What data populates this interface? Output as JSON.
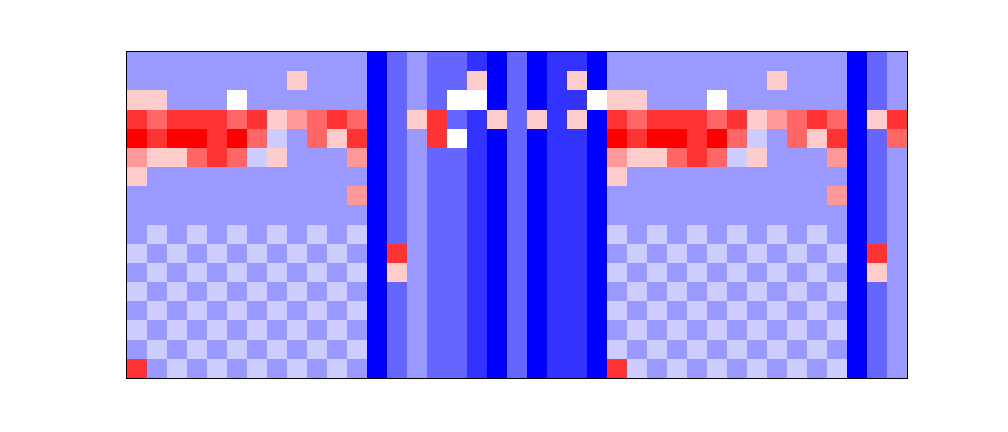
{
  "chart_data": {
    "type": "heatmap",
    "tick_labels": false,
    "grid": false,
    "xlim": [
      -0.5,
      38.5
    ],
    "ylim": [
      16.5,
      -0.5
    ],
    "zlim": [
      0,
      10
    ],
    "z": [
      [
        3,
        3,
        3,
        3,
        3,
        3,
        3,
        3,
        3,
        3,
        3,
        3,
        0,
        2,
        3,
        2,
        2,
        1,
        0,
        2,
        0,
        1,
        1,
        0,
        3,
        3,
        3,
        3,
        3,
        3,
        3,
        3,
        3,
        3,
        3,
        3,
        0,
        2,
        3
      ],
      [
        3,
        3,
        3,
        3,
        3,
        3,
        3,
        3,
        6,
        3,
        3,
        3,
        0,
        2,
        3,
        2,
        2,
        6,
        0,
        2,
        0,
        1,
        6,
        0,
        3,
        3,
        3,
        3,
        3,
        3,
        3,
        3,
        6,
        3,
        3,
        3,
        0,
        2,
        3
      ],
      [
        6,
        6,
        3,
        3,
        3,
        5,
        3,
        3,
        3,
        3,
        3,
        3,
        0,
        2,
        3,
        2,
        5,
        5,
        0,
        2,
        0,
        1,
        1,
        5,
        6,
        6,
        3,
        3,
        3,
        5,
        3,
        3,
        3,
        3,
        3,
        3,
        0,
        2,
        3
      ],
      [
        9,
        8,
        9,
        9,
        9,
        8,
        9,
        6,
        7,
        8,
        9,
        8,
        0,
        2,
        6,
        9,
        2,
        1,
        6,
        2,
        6,
        1,
        6,
        0,
        9,
        8,
        9,
        9,
        9,
        8,
        9,
        6,
        7,
        8,
        9,
        8,
        0,
        6,
        9
      ],
      [
        10,
        9,
        10,
        10,
        9,
        10,
        8,
        4,
        3,
        8,
        6,
        9,
        0,
        2,
        3,
        9,
        5,
        1,
        0,
        2,
        0,
        1,
        1,
        0,
        10,
        9,
        10,
        10,
        9,
        10,
        8,
        4,
        3,
        8,
        6,
        9,
        0,
        2,
        8
      ],
      [
        7,
        6,
        6,
        8,
        9,
        8,
        4,
        6,
        3,
        3,
        3,
        7,
        0,
        2,
        3,
        2,
        2,
        1,
        0,
        2,
        0,
        1,
        1,
        0,
        7,
        6,
        6,
        8,
        9,
        8,
        4,
        6,
        3,
        3,
        3,
        7,
        0,
        2,
        3
      ],
      [
        6,
        3,
        3,
        3,
        3,
        3,
        3,
        3,
        3,
        3,
        3,
        3,
        0,
        2,
        3,
        2,
        2,
        1,
        0,
        2,
        0,
        1,
        1,
        0,
        6,
        3,
        3,
        3,
        3,
        3,
        3,
        3,
        3,
        3,
        3,
        3,
        0,
        2,
        3
      ],
      [
        3,
        3,
        3,
        3,
        3,
        3,
        3,
        3,
        3,
        3,
        3,
        7,
        0,
        2,
        3,
        2,
        2,
        1,
        0,
        2,
        0,
        1,
        1,
        0,
        3,
        3,
        3,
        3,
        3,
        3,
        3,
        3,
        3,
        3,
        3,
        7,
        0,
        2,
        3
      ],
      [
        3,
        3,
        3,
        3,
        3,
        3,
        3,
        3,
        3,
        3,
        3,
        3,
        0,
        2,
        3,
        2,
        2,
        1,
        0,
        2,
        0,
        1,
        1,
        0,
        3,
        3,
        3,
        3,
        3,
        3,
        3,
        3,
        3,
        3,
        3,
        3,
        0,
        2,
        3
      ],
      [
        3,
        4,
        3,
        4,
        3,
        4,
        3,
        4,
        3,
        4,
        3,
        4,
        0,
        2,
        3,
        2,
        2,
        1,
        0,
        2,
        0,
        1,
        1,
        0,
        4,
        3,
        4,
        3,
        4,
        3,
        4,
        3,
        4,
        3,
        4,
        3,
        0,
        2,
        3
      ],
      [
        4,
        3,
        4,
        3,
        4,
        3,
        4,
        3,
        4,
        3,
        4,
        3,
        0,
        9,
        3,
        2,
        2,
        1,
        0,
        2,
        0,
        1,
        1,
        0,
        3,
        4,
        3,
        4,
        3,
        4,
        3,
        4,
        3,
        4,
        3,
        4,
        0,
        9,
        3
      ],
      [
        3,
        4,
        3,
        4,
        3,
        4,
        3,
        4,
        3,
        4,
        3,
        4,
        0,
        6,
        3,
        2,
        2,
        1,
        0,
        2,
        0,
        1,
        1,
        0,
        4,
        3,
        4,
        3,
        4,
        3,
        4,
        3,
        4,
        3,
        4,
        3,
        0,
        6,
        3
      ],
      [
        4,
        3,
        4,
        3,
        4,
        3,
        4,
        3,
        4,
        3,
        4,
        3,
        0,
        2,
        3,
        2,
        2,
        1,
        0,
        2,
        0,
        1,
        1,
        0,
        3,
        4,
        3,
        4,
        3,
        4,
        3,
        4,
        3,
        4,
        3,
        4,
        0,
        2,
        3
      ],
      [
        3,
        4,
        3,
        4,
        3,
        4,
        3,
        4,
        3,
        4,
        3,
        4,
        0,
        2,
        3,
        2,
        2,
        1,
        0,
        2,
        0,
        1,
        1,
        0,
        4,
        3,
        4,
        3,
        4,
        3,
        4,
        3,
        4,
        3,
        4,
        3,
        0,
        2,
        3
      ],
      [
        4,
        3,
        4,
        3,
        4,
        3,
        4,
        3,
        4,
        3,
        4,
        3,
        0,
        2,
        3,
        2,
        2,
        1,
        0,
        2,
        0,
        1,
        1,
        0,
        3,
        4,
        3,
        4,
        3,
        4,
        3,
        4,
        3,
        4,
        3,
        4,
        0,
        2,
        3
      ],
      [
        3,
        4,
        3,
        4,
        3,
        4,
        3,
        4,
        3,
        4,
        3,
        4,
        0,
        2,
        3,
        2,
        2,
        1,
        0,
        2,
        0,
        1,
        1,
        0,
        4,
        3,
        4,
        3,
        4,
        3,
        4,
        3,
        4,
        3,
        4,
        3,
        0,
        2,
        3
      ],
      [
        9,
        3,
        4,
        3,
        4,
        3,
        4,
        3,
        4,
        3,
        4,
        3,
        0,
        2,
        3,
        2,
        2,
        1,
        0,
        2,
        0,
        1,
        1,
        0,
        9,
        4,
        3,
        4,
        3,
        4,
        3,
        4,
        3,
        4,
        3,
        4,
        0,
        2,
        3
      ]
    ]
  }
}
